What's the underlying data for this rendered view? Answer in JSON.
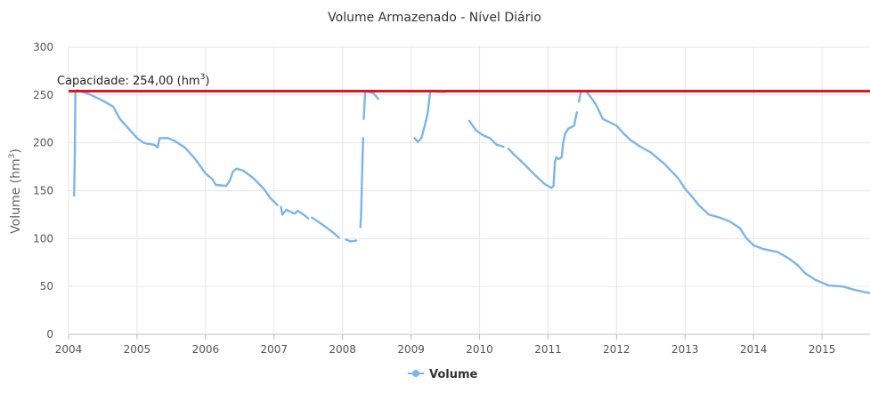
{
  "chart_data": {
    "type": "line",
    "title": "Volume Armazenado - Nível Diário",
    "xlabel": "",
    "ylabel": "Volume (hm³)",
    "ylabel_main": "Volume (hm",
    "ylabel_sup": "3",
    "ylabel_end": ")",
    "xlim": [
      2004,
      2015.7
    ],
    "ylim": [
      0,
      300
    ],
    "grid": true,
    "legend": "bottom-center",
    "x_ticks": [
      "2004",
      "2005",
      "2006",
      "2007",
      "2008",
      "2009",
      "2010",
      "2011",
      "2012",
      "2013",
      "2014",
      "2015"
    ],
    "y_ticks": [
      "0",
      "50",
      "100",
      "150",
      "200",
      "250",
      "300"
    ],
    "capacity_line": {
      "value": 254,
      "label_main": "Capacidade: 254,00 (hm",
      "label_sup": "3",
      "label_end": ")",
      "color": "#e0161e"
    },
    "series": [
      {
        "name": "Volume",
        "color": "#7cb5ec",
        "segments": [
          [
            [
              2004.08,
              145
            ],
            [
              2004.09,
              180
            ],
            [
              2004.1,
              253
            ],
            [
              2004.12,
              255
            ],
            [
              2004.3,
              251
            ],
            [
              2004.5,
              244
            ],
            [
              2004.65,
              238
            ],
            [
              2004.75,
              225
            ],
            [
              2004.9,
              213
            ],
            [
              2005.0,
              205
            ],
            [
              2005.1,
              200
            ],
            [
              2005.15,
              199
            ],
            [
              2005.25,
              198
            ],
            [
              2005.3,
              195
            ],
            [
              2005.33,
              205
            ],
            [
              2005.45,
              205
            ],
            [
              2005.55,
              202
            ],
            [
              2005.7,
              195
            ],
            [
              2005.85,
              183
            ],
            [
              2006.0,
              168
            ],
            [
              2006.1,
              162
            ],
            [
              2006.15,
              156
            ],
            [
              2006.3,
              155
            ],
            [
              2006.35,
              160
            ],
            [
              2006.4,
              170
            ],
            [
              2006.45,
              173
            ],
            [
              2006.55,
              171
            ],
            [
              2006.7,
              163
            ],
            [
              2006.85,
              152
            ],
            [
              2006.95,
              142
            ],
            [
              2007.05,
              135
            ]
          ],
          [
            [
              2007.1,
              133
            ],
            [
              2007.12,
              125
            ],
            [
              2007.18,
              130
            ],
            [
              2007.3,
              126
            ],
            [
              2007.35,
              129
            ],
            [
              2007.45,
              124
            ],
            [
              2007.5,
              121
            ]
          ],
          [
            [
              2007.55,
              122
            ],
            [
              2007.7,
              115
            ],
            [
              2007.85,
              107
            ],
            [
              2007.95,
              101
            ]
          ],
          [
            [
              2008.05,
              99
            ],
            [
              2008.12,
              97
            ],
            [
              2008.2,
              98
            ]
          ],
          [
            [
              2008.26,
              112
            ],
            [
              2008.27,
              125
            ],
            [
              2008.28,
              150
            ],
            [
              2008.29,
              180
            ],
            [
              2008.3,
              205
            ]
          ],
          [
            [
              2008.31,
              225
            ],
            [
              2008.33,
              254
            ],
            [
              2008.45,
              252
            ],
            [
              2008.52,
              246
            ]
          ],
          [
            [
              2009.05,
              205
            ],
            [
              2009.1,
              201
            ],
            [
              2009.15,
              205
            ],
            [
              2009.2,
              218
            ],
            [
              2009.24,
              230
            ],
            [
              2009.28,
              254
            ],
            [
              2009.5,
              253
            ]
          ],
          [
            [
              2009.85,
              223
            ],
            [
              2009.95,
              213
            ],
            [
              2010.05,
              208
            ],
            [
              2010.15,
              205
            ],
            [
              2010.25,
              198
            ],
            [
              2010.35,
              196
            ]
          ],
          [
            [
              2010.42,
              194
            ],
            [
              2010.5,
              188
            ],
            [
              2010.65,
              178
            ],
            [
              2010.8,
              167
            ],
            [
              2010.95,
              157
            ],
            [
              2011.05,
              153
            ],
            [
              2011.08,
              155
            ],
            [
              2011.1,
              180
            ],
            [
              2011.12,
              185
            ],
            [
              2011.15,
              183
            ],
            [
              2011.2,
              185
            ],
            [
              2011.22,
              200
            ],
            [
              2011.25,
              210
            ],
            [
              2011.3,
              215
            ],
            [
              2011.38,
              218
            ],
            [
              2011.42,
              232
            ]
          ],
          [
            [
              2011.45,
              243
            ],
            [
              2011.47,
              250
            ],
            [
              2011.48,
              254
            ],
            [
              2011.55,
              254
            ],
            [
              2011.6,
              250
            ],
            [
              2011.7,
              240
            ],
            [
              2011.8,
              225
            ],
            [
              2012.0,
              218
            ],
            [
              2012.1,
              210
            ],
            [
              2012.2,
              203
            ],
            [
              2012.35,
              196
            ],
            [
              2012.5,
              190
            ],
            [
              2012.7,
              178
            ],
            [
              2012.9,
              163
            ],
            [
              2013.0,
              152
            ],
            [
              2013.1,
              144
            ],
            [
              2013.2,
              135
            ],
            [
              2013.35,
              125
            ],
            [
              2013.5,
              122
            ],
            [
              2013.65,
              118
            ],
            [
              2013.8,
              111
            ],
            [
              2013.9,
              100
            ],
            [
              2014.0,
              93
            ],
            [
              2014.15,
              89
            ],
            [
              2014.35,
              86
            ],
            [
              2014.5,
              80
            ],
            [
              2014.65,
              72
            ],
            [
              2014.75,
              64
            ],
            [
              2014.9,
              57
            ],
            [
              2015.1,
              51
            ],
            [
              2015.3,
              50
            ],
            [
              2015.5,
              46
            ],
            [
              2015.7,
              43
            ]
          ]
        ]
      }
    ]
  }
}
